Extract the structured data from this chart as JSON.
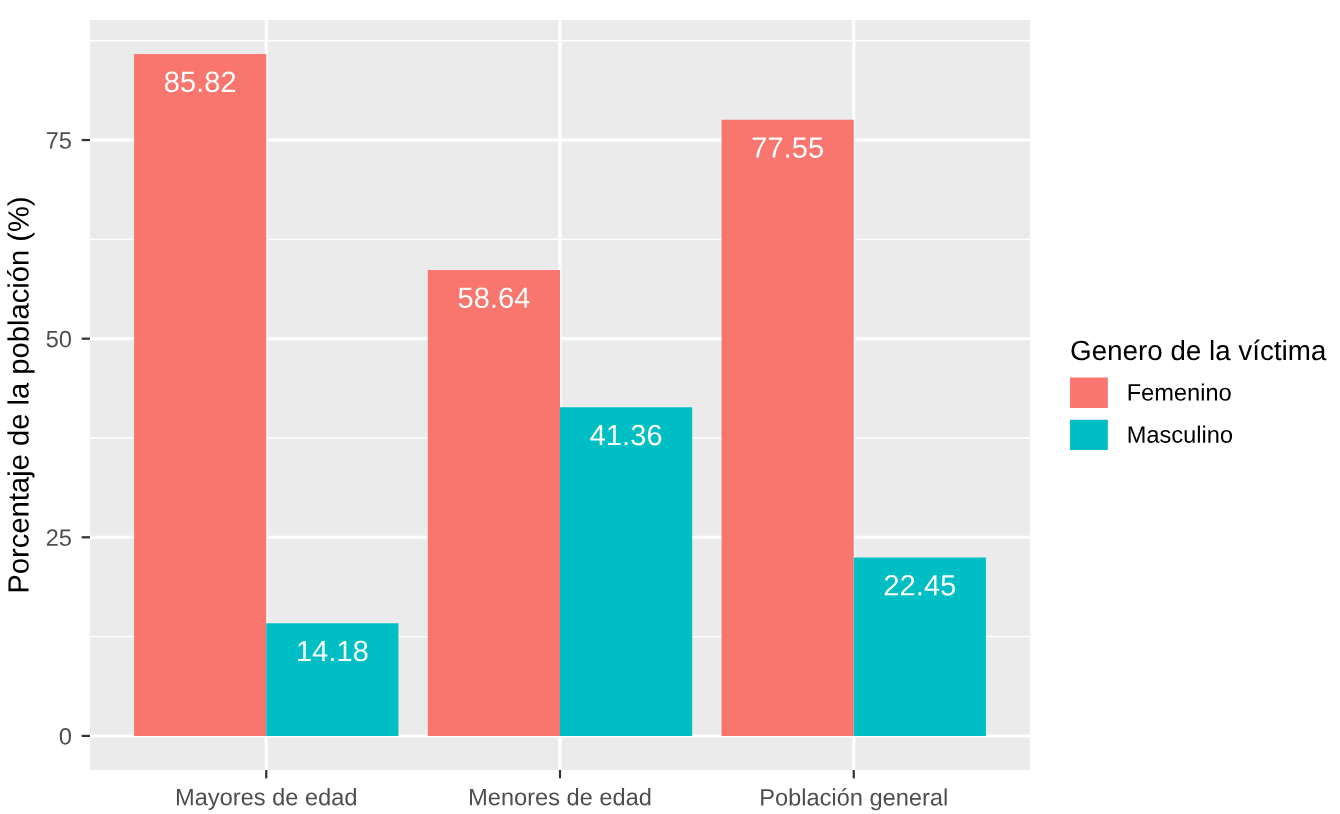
{
  "chart_data": {
    "type": "bar",
    "ylabel": "Porcentaje de la población (%)",
    "legend_title": "Genero de la víctima",
    "categories": [
      "Mayores de edad",
      "Menores de edad",
      "Población general"
    ],
    "series": [
      {
        "name": "Femenino",
        "color": "#f8766d",
        "values": [
          85.82,
          58.64,
          77.55
        ]
      },
      {
        "name": "Masculino",
        "color": "#00bfc4",
        "values": [
          14.18,
          41.36,
          22.45
        ]
      }
    ],
    "ylim": [
      -4.29,
      90.11
    ],
    "yticks": [
      0,
      25,
      50,
      75
    ],
    "grid": true,
    "legend": "right",
    "data_labels": true
  }
}
